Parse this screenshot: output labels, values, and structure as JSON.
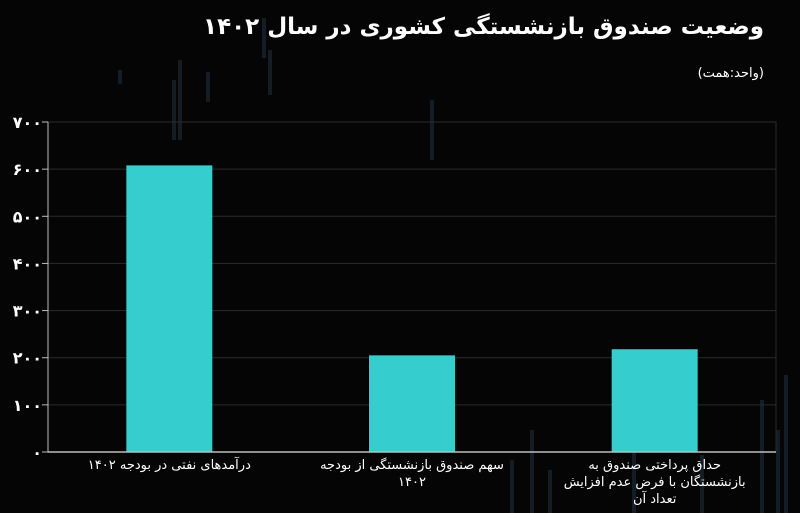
{
  "title": "وضعیت صندوق بازنشستگی کشوری در سال ۱۴۰۲",
  "unit": "(واحد:همت)",
  "colors": {
    "bar": "#35cdce",
    "background": "#050505",
    "axis": "#bdbdbd",
    "grid": "#2b2b2b",
    "text": "#ffffff"
  },
  "chart_data": {
    "type": "bar",
    "title": "وضعیت صندوق بازنشستگی کشوری در سال ۱۴۰۲",
    "ylabel": "(واحد:همت)",
    "ylim": [
      0,
      700
    ],
    "yticks": [
      0,
      100,
      200,
      300,
      400,
      500,
      600,
      700
    ],
    "ytick_labels": [
      "۰",
      "۱۰۰",
      "۲۰۰",
      "۳۰۰",
      "۴۰۰",
      "۵۰۰",
      "۶۰۰",
      "۷۰۰"
    ],
    "grid": true,
    "categories": [
      "درآمدهای نفتی در بودجه ۱۴۰۲",
      "سهم صندوق بازنشستگی از بودجه ۱۴۰۲",
      "حداق پرداختی صندوق به بازنشستگان با فرض عدم افزایش تعداد آن"
    ],
    "values": [
      608,
      205,
      218
    ]
  }
}
